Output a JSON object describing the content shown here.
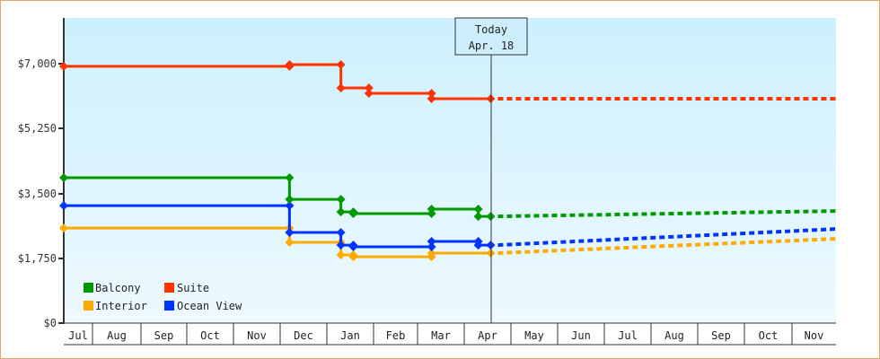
{
  "chart_data": {
    "type": "line",
    "subtype": "step",
    "title": "",
    "xlabel": "",
    "ylabel": "",
    "ylim": [
      0,
      8250
    ],
    "y_ticks": [
      {
        "value": 0,
        "label": "$0"
      },
      {
        "value": 1750,
        "label": "$1,750"
      },
      {
        "value": 3500,
        "label": "$3,500"
      },
      {
        "value": 5250,
        "label": "$5,250"
      },
      {
        "value": 7000,
        "label": "$7,000"
      }
    ],
    "x_months": [
      "Jul",
      "Aug",
      "Sep",
      "Oct",
      "Nov",
      "Dec",
      "Jan",
      "Feb",
      "Mar",
      "Apr",
      "May",
      "Jun",
      "Jul",
      "Aug",
      "Sep",
      "Oct",
      "Nov"
    ],
    "today_marker": {
      "line1": "Today",
      "line2": "Apr. 18"
    },
    "grid": false,
    "legend_position": "bottom-left inside plot",
    "series": [
      {
        "name": "Balcony",
        "color": "#009900",
        "history": [
          {
            "date": "Jul 1",
            "value": 3925
          },
          {
            "date": "Dec 7",
            "value": 3340
          },
          {
            "date": "Jan 10",
            "value": 3000
          },
          {
            "date": "Jan 18",
            "value": 2955
          },
          {
            "date": "Mar 10",
            "value": 3075
          },
          {
            "date": "Apr 10",
            "value": 2880
          },
          {
            "date": "Apr 18",
            "value": 2880
          }
        ],
        "forecast": [
          {
            "date": "Apr 18",
            "value": 2880
          },
          {
            "date": "Nov 30",
            "value": 3025
          }
        ]
      },
      {
        "name": "Suite",
        "color": "#ff3300",
        "history": [
          {
            "date": "Jul 1",
            "value": 6930
          },
          {
            "date": "Dec 7",
            "value": 6975
          },
          {
            "date": "Jan 10",
            "value": 6345
          },
          {
            "date": "Jan 28",
            "value": 6200
          },
          {
            "date": "Mar 10",
            "value": 6055
          },
          {
            "date": "Apr 18",
            "value": 6055
          }
        ],
        "forecast": [
          {
            "date": "Apr 18",
            "value": 6055
          },
          {
            "date": "Nov 30",
            "value": 6055
          }
        ]
      },
      {
        "name": "Interior",
        "color": "#ffaa00",
        "history": [
          {
            "date": "Jul 1",
            "value": 2565
          },
          {
            "date": "Dec 7",
            "value": 2180
          },
          {
            "date": "Jan 10",
            "value": 1840
          },
          {
            "date": "Jan 18",
            "value": 1790
          },
          {
            "date": "Mar 10",
            "value": 1890
          },
          {
            "date": "Apr 18",
            "value": 1890
          }
        ],
        "forecast": [
          {
            "date": "Apr 18",
            "value": 1890
          },
          {
            "date": "Nov 30",
            "value": 2275
          }
        ]
      },
      {
        "name": "Ocean View",
        "color": "#0033ff",
        "history": [
          {
            "date": "Jul 1",
            "value": 3170
          },
          {
            "date": "Dec 7",
            "value": 2445
          },
          {
            "date": "Jan 10",
            "value": 2105
          },
          {
            "date": "Jan 18",
            "value": 2060
          },
          {
            "date": "Mar 10",
            "value": 2205
          },
          {
            "date": "Apr 10",
            "value": 2105
          },
          {
            "date": "Apr 18",
            "value": 2105
          }
        ],
        "forecast": [
          {
            "date": "Apr 18",
            "value": 2105
          },
          {
            "date": "Nov 30",
            "value": 2540
          }
        ]
      }
    ]
  },
  "legend": [
    {
      "label": "Balcony",
      "color": "#009900"
    },
    {
      "label": "Suite",
      "color": "#ff3300"
    },
    {
      "label": "Interior",
      "color": "#ffaa00"
    },
    {
      "label": "Ocean View",
      "color": "#0033ff"
    }
  ]
}
